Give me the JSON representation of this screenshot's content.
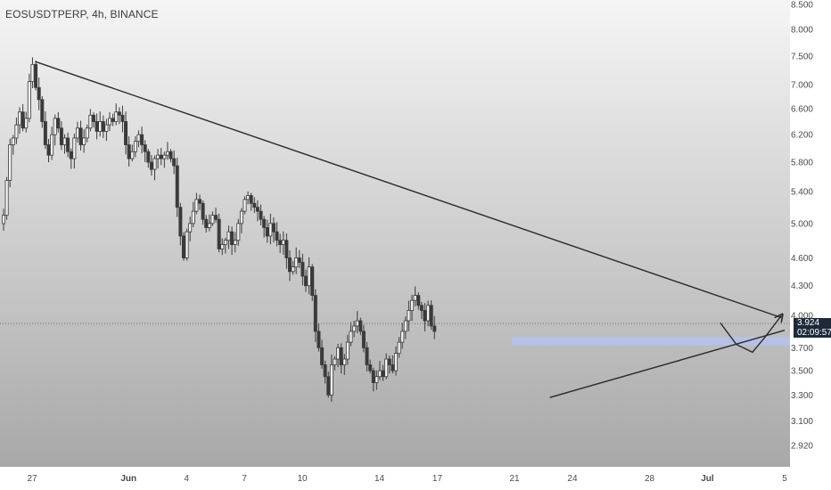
{
  "header": {
    "title": "EOSUSDTPERP, 4h, BINANCE"
  },
  "price_badge": {
    "price": "3.924",
    "countdown": "02:09:57"
  },
  "colors": {
    "bg_top": "#f4f4f4",
    "bg_bottom": "#a7a7a7",
    "candle": "#3b3b3b",
    "trendline": "#2a2a2a",
    "zone": "#b6c2ec",
    "badge": "#1d2a39"
  },
  "chart_data": {
    "type": "candlestick",
    "title": "EOSUSDTPERP, 4h, BINANCE",
    "y_ticks": [
      "8.500",
      "8.000",
      "7.500",
      "7.000",
      "6.600",
      "6.200",
      "5.800",
      "5.400",
      "5.000",
      "4.600",
      "4.300",
      "4.000",
      "3.700",
      "3.500",
      "3.300",
      "3.100",
      "2.920"
    ],
    "ylim": [
      2.92,
      8.5
    ],
    "y_scale": "log",
    "x_ticks": [
      "27",
      "Jun",
      "4",
      "7",
      "10",
      "14",
      "17",
      "21",
      "24",
      "28",
      "Jul",
      "5"
    ],
    "x_tick_dates": [
      "2021-05-27",
      "2021-06-01",
      "2021-06-04",
      "2021-06-07",
      "2021-06-10",
      "2021-06-14",
      "2021-06-17",
      "2021-06-21",
      "2021-06-24",
      "2021-06-28",
      "2021-07-01",
      "2021-07-05"
    ],
    "current_price": 3.924,
    "series_close": [
      5.1,
      5.55,
      6.05,
      6.15,
      6.35,
      6.55,
      6.3,
      6.45,
      7.05,
      7.35,
      6.95,
      6.75,
      6.4,
      6.05,
      5.9,
      6.2,
      6.45,
      6.3,
      6.05,
      6.15,
      5.95,
      5.85,
      6.15,
      6.3,
      6.05,
      6.15,
      6.3,
      6.5,
      6.4,
      6.25,
      6.4,
      6.25,
      6.35,
      6.45,
      6.4,
      6.55,
      6.5,
      6.4,
      6.05,
      5.85,
      5.95,
      6.1,
      6.2,
      6.05,
      5.95,
      5.8,
      5.7,
      5.85,
      5.9,
      5.85,
      5.9,
      5.95,
      5.85,
      5.75,
      5.2,
      4.85,
      4.6,
      4.9,
      5.0,
      5.15,
      5.3,
      5.25,
      5.05,
      4.95,
      5.0,
      5.1,
      5.05,
      4.7,
      4.75,
      4.8,
      4.9,
      4.75,
      4.8,
      5.0,
      5.15,
      5.3,
      5.35,
      5.25,
      5.2,
      5.15,
      5.05,
      4.95,
      4.85,
      5.0,
      4.9,
      4.8,
      4.75,
      4.8,
      4.6,
      4.45,
      4.5,
      4.6,
      4.55,
      4.4,
      4.3,
      4.5,
      4.2,
      3.85,
      3.7,
      3.55,
      3.45,
      3.3,
      3.55,
      3.6,
      3.7,
      3.55,
      3.6,
      3.75,
      3.85,
      3.9,
      3.95,
      3.85,
      3.7,
      3.55,
      3.5,
      3.4,
      3.45,
      3.5,
      3.45,
      3.6,
      3.55,
      3.5,
      3.65,
      3.75,
      3.85,
      3.95,
      4.05,
      4.15,
      4.2,
      4.1,
      4.05,
      3.95,
      4.1,
      3.9,
      3.85
    ],
    "x_range": [
      "2021-05-25T08:00",
      "2021-07-05T00:00"
    ],
    "candle_interval_hours": 4,
    "zone": {
      "low": 3.72,
      "high": 3.8
    },
    "trendlines": [
      {
        "name": "resistance",
        "points": [
          [
            "2021-05-27T04:00",
            7.4
          ],
          [
            "2021-07-04T20:00",
            3.98
          ]
        ]
      },
      {
        "name": "support",
        "points": [
          [
            "2021-06-22T20:00",
            3.28
          ],
          [
            "2021-07-05T00:00",
            3.86
          ]
        ]
      }
    ],
    "projection_path": [
      [
        "2021-07-01T16:00",
        3.93
      ],
      [
        "2021-07-02T12:00",
        3.73
      ],
      [
        "2021-07-03T08:00",
        3.66
      ],
      [
        "2021-07-04T00:00",
        3.8
      ],
      [
        "2021-07-04T20:00",
        4.0
      ]
    ]
  }
}
